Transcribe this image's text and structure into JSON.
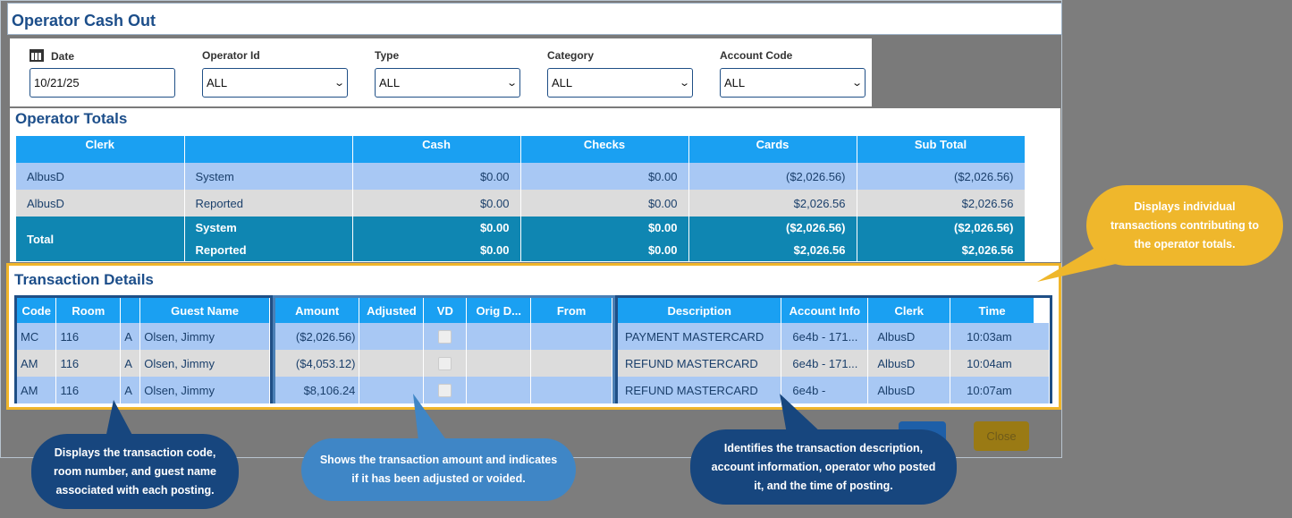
{
  "window": {
    "title": "Operator Cash Out"
  },
  "filters": {
    "date": {
      "label": "Date",
      "value": "10/21/25"
    },
    "operator_id": {
      "label": "Operator Id",
      "value": "ALL"
    },
    "type": {
      "label": "Type",
      "value": "ALL"
    },
    "category": {
      "label": "Category",
      "value": "ALL"
    },
    "account_code": {
      "label": "Account Code",
      "value": "ALL"
    }
  },
  "operator_totals": {
    "heading": "Operator Totals",
    "columns": [
      "Clerk",
      "",
      "Cash",
      "Checks",
      "Cards",
      "Sub Total"
    ],
    "rows": [
      {
        "clerk": "AlbusD",
        "kind": "System",
        "cash": "$0.00",
        "checks": "$0.00",
        "cards": "($2,026.56)",
        "subtotal": "($2,026.56)"
      },
      {
        "clerk": "AlbusD",
        "kind": "Reported",
        "cash": "$0.00",
        "checks": "$0.00",
        "cards": "$2,026.56",
        "subtotal": "$2,026.56"
      }
    ],
    "total": {
      "label": "Total",
      "system": {
        "kind": "System",
        "cash": "$0.00",
        "checks": "$0.00",
        "cards": "($2,026.56)",
        "subtotal": "($2,026.56)"
      },
      "reported": {
        "kind": "Reported",
        "cash": "$0.00",
        "checks": "$0.00",
        "cards": "$2,026.56",
        "subtotal": "$2,026.56"
      }
    }
  },
  "transaction_details": {
    "heading": "Transaction Details",
    "left_columns": [
      "Code",
      "Room",
      "",
      "Guest Name"
    ],
    "mid_columns": [
      "Amount",
      "Adjusted",
      "VD",
      "Orig D...",
      "From"
    ],
    "right_columns": [
      "Description",
      "Account Info",
      "Clerk",
      "Time"
    ],
    "rows": [
      {
        "code": "MC",
        "room": "116",
        "flag": "A",
        "guest": "Olsen, Jimmy",
        "amount": "($2,026.56)",
        "adjusted": "",
        "orig": "",
        "from": "",
        "description": "PAYMENT MASTERCARD",
        "account": "6e4b - 171...",
        "clerk": "AlbusD",
        "time": "10:03am"
      },
      {
        "code": "AM",
        "room": "116",
        "flag": "A",
        "guest": "Olsen, Jimmy",
        "amount": "($4,053.12)",
        "adjusted": "",
        "orig": "",
        "from": "",
        "description": "REFUND MASTERCARD",
        "account": "6e4b - 171...",
        "clerk": "AlbusD",
        "time": "10:04am"
      },
      {
        "code": "AM",
        "room": "116",
        "flag": "A",
        "guest": "Olsen, Jimmy",
        "amount": "$8,106.24",
        "adjusted": "",
        "orig": "",
        "from": "",
        "description": "REFUND MASTERCARD",
        "account": "6e4b -",
        "clerk": "AlbusD",
        "time": "10:07am"
      }
    ]
  },
  "buttons": {
    "close": "Close"
  },
  "callouts": {
    "top_right": "Displays individual transactions contributing to the operator totals.",
    "left": "Displays the transaction code, room number, and guest name associated with each posting.",
    "middle": "Shows the transaction amount and indicates if it has been adjusted or voided.",
    "right": "Identifies the transaction description, account information, operator who posted it, and the time of posting."
  },
  "colors": {
    "header_blue": "#1aa0f2",
    "total_teal": "#0f86b2",
    "highlight_gold": "#f0b52a",
    "callout_dark": "#17467e",
    "callout_mid": "#3f86c6"
  }
}
